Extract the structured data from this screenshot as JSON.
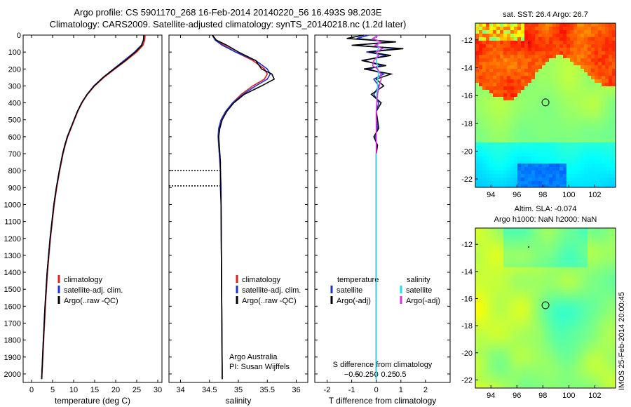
{
  "header": {
    "title_line1": "Argo profile: CS 5901170_268 16-Feb-2014 20140220_56 16.493S 98.203E",
    "title_line2": "Climatology: CARS2009. Satellite-adjusted climatology: synTS_20140218.nc (1.2d later)"
  },
  "colors": {
    "climatology": "#e02020",
    "satellite": "#1f2fd8",
    "argo": "#000000",
    "salinity_satellite": "#22e0e0",
    "salinity_argo": "#e030e0"
  },
  "chart_data": [
    {
      "type": "line",
      "ylim": [
        2050,
        0
      ],
      "xlim": [
        -2,
        31
      ],
      "yticks": [
        0,
        100,
        200,
        300,
        400,
        500,
        600,
        700,
        800,
        900,
        1000,
        1100,
        1200,
        1300,
        1400,
        1500,
        1600,
        1700,
        1800,
        1900,
        2000
      ],
      "xticks": [
        0,
        5,
        10,
        15,
        20,
        25,
        30
      ],
      "xlabel": "temperature (deg C)",
      "legend": [
        "climatology",
        "satellite-adj. clim.",
        "Argo(..raw -QC)"
      ],
      "depth": [
        0,
        30,
        60,
        100,
        150,
        200,
        250,
        300,
        350,
        400,
        450,
        500,
        550,
        600,
        650,
        700,
        800,
        900,
        1000,
        1200,
        1400,
        1600,
        1800,
        2000,
        2030
      ],
      "series": [
        {
          "name": "climatology",
          "values": [
            27.0,
            26.9,
            26.5,
            25.0,
            22.5,
            19.8,
            17.2,
            15.0,
            13.3,
            12.0,
            11.0,
            10.2,
            9.4,
            8.6,
            8.0,
            7.5,
            6.7,
            6.0,
            5.4,
            4.5,
            3.8,
            3.3,
            2.9,
            2.5,
            2.45
          ]
        },
        {
          "name": "satellite-adj. clim.",
          "values": [
            26.7,
            26.6,
            26.1,
            24.5,
            22.0,
            19.5,
            17.0,
            14.8,
            13.2,
            11.9,
            10.9,
            10.1,
            9.3,
            8.5,
            7.9,
            7.4,
            6.6,
            5.9,
            5.3,
            4.4,
            3.7,
            3.2,
            2.8,
            2.45,
            2.4
          ]
        },
        {
          "name": "Argo(..raw -QC)",
          "values": [
            26.7,
            26.6,
            26.2,
            24.7,
            22.3,
            19.6,
            17.0,
            14.9,
            13.2,
            11.9,
            10.9,
            10.1,
            9.3,
            8.5,
            7.9,
            7.4,
            6.6,
            5.9,
            5.3,
            4.4,
            3.7,
            3.2,
            2.8,
            2.45,
            2.4
          ]
        }
      ]
    },
    {
      "type": "line",
      "ylim": [
        2050,
        0
      ],
      "xlim": [
        33.8,
        36.2
      ],
      "xticks": [
        34,
        34.5,
        35,
        35.5,
        36
      ],
      "xlabel": "salinity",
      "legend": [
        "climatology",
        "satellite-adj. clim.",
        "Argo(..raw -QC)"
      ],
      "notes": [
        "Argo Australia",
        "PI: Susan Wijffels"
      ],
      "depth": [
        0,
        30,
        60,
        100,
        150,
        200,
        230,
        260,
        300,
        350,
        400,
        450,
        500,
        550,
        600,
        650,
        700,
        750,
        800,
        900,
        1000,
        1500,
        2000,
        2030
      ],
      "series": [
        {
          "name": "climatology",
          "values": [
            34.55,
            34.6,
            34.75,
            34.95,
            35.25,
            35.45,
            35.5,
            35.45,
            35.25,
            35.05,
            34.9,
            34.78,
            34.7,
            34.67,
            34.66,
            34.66,
            34.67,
            34.68,
            34.69,
            34.7,
            34.7,
            34.71,
            34.72,
            34.72
          ]
        },
        {
          "name": "satellite-adj. clim.",
          "values": [
            34.55,
            34.6,
            34.72,
            34.95,
            35.3,
            35.5,
            35.55,
            35.5,
            35.3,
            35.08,
            34.9,
            34.78,
            34.7,
            34.66,
            34.65,
            34.66,
            34.67,
            34.68,
            34.69,
            34.7,
            34.7,
            34.71,
            34.72,
            34.72
          ]
        },
        {
          "name": "Argo(..raw -QC)",
          "values": [
            34.55,
            34.62,
            34.8,
            35.0,
            35.3,
            35.4,
            35.58,
            35.62,
            35.4,
            35.1,
            34.92,
            34.8,
            34.72,
            34.68,
            34.66,
            34.67,
            34.68,
            34.69,
            34.69,
            34.69,
            34.7,
            34.71,
            34.72,
            34.72
          ]
        }
      ]
    },
    {
      "type": "line",
      "ylim": [
        2050,
        0
      ],
      "xlim": [
        -2.5,
        3
      ],
      "xticks": [
        -2,
        -1,
        0,
        1,
        2
      ],
      "xlabel": "T difference from climatology",
      "top_xticks": [
        -0.5,
        -0.25,
        0,
        0.25,
        0.5
      ],
      "top_xticklabels": [
        "−0.5",
        "−0.25",
        "0",
        "0.25",
        "0.5"
      ],
      "top_xlabel": "S difference from climatology",
      "legend_groups": [
        {
          "title": "temperature",
          "entries": [
            "satellite",
            "Argo(-adj)"
          ]
        },
        {
          "title": "salinity",
          "entries": [
            "satellite",
            "Argo(-adj)"
          ]
        }
      ],
      "depth": [
        0,
        20,
        40,
        60,
        80,
        100,
        120,
        150,
        180,
        200,
        230,
        260,
        300,
        350,
        400,
        450,
        500,
        550,
        600,
        650,
        700,
        800,
        1000,
        1200,
        1500,
        1800,
        2030
      ],
      "series": [
        {
          "name": "temperature satellite",
          "values": [
            -0.3,
            -0.8,
            0.6,
            -0.9,
            0.9,
            -0.4,
            0.4,
            -0.5,
            0.2,
            -0.3,
            0.3,
            -0.1,
            0.1,
            -0.1,
            0.1,
            0.0,
            0.0,
            0.05,
            -0.05,
            0.02,
            0.0,
            0.0,
            0.0,
            0.0,
            0.0,
            0.0,
            0.0
          ]
        },
        {
          "name": "temperature Argo(-adj)",
          "values": [
            -0.5,
            -1.2,
            0.8,
            -1.0,
            1.1,
            -0.3,
            0.6,
            -0.6,
            0.4,
            -0.5,
            0.6,
            0.0,
            0.3,
            -0.2,
            0.2,
            0.0,
            0.05,
            0.1,
            -0.1,
            0.05,
            0.0,
            0.0,
            0.0,
            0.0,
            0.0,
            0.0,
            0.0
          ]
        },
        {
          "name": "salinity satellite",
          "values": [
            0.05,
            -0.1,
            0.15,
            0.05,
            0.1,
            0.0,
            0.05,
            0.0,
            0.05,
            0.05,
            0.1,
            0.05,
            0.05,
            0.02,
            0.02,
            0.0,
            0.0,
            0.0,
            0.0,
            0.0,
            0.0,
            0.0,
            0.0,
            0.0,
            0.0,
            0.0,
            0.0
          ]
        },
        {
          "name": "salinity Argo(-adj)",
          "values": [
            0.1,
            -0.15,
            0.2,
            -0.05,
            0.25,
            0.0,
            0.1,
            -0.1,
            -0.15,
            0.05,
            0.18,
            0.2,
            0.12,
            0.05,
            0.02,
            0.0,
            0.0,
            0.0,
            0.0,
            0.0,
            0.0,
            0.0,
            0.0,
            0.0,
            0.0,
            0.0,
            0.0
          ]
        }
      ]
    },
    {
      "type": "heatmap",
      "title": "sat. SST: 26.4  Argo: 26.7",
      "xticks": [
        94,
        96,
        98,
        100,
        102
      ],
      "yticks": [
        -12,
        -14,
        -16,
        -18,
        -20,
        -22
      ],
      "xlim": [
        92.8,
        103.6
      ],
      "ylim": [
        -22.6,
        -10.8
      ],
      "argo_location": [
        98.203,
        -16.493
      ]
    },
    {
      "type": "heatmap",
      "title": "Altim. SLA: -0.074",
      "subtitle": "Argo h1000: NaN h2000: NaN",
      "xticks": [
        94,
        96,
        98,
        100,
        102
      ],
      "yticks": [
        -12,
        -14,
        -16,
        -18,
        -20,
        -22
      ],
      "xlim": [
        92.8,
        103.6
      ],
      "ylim": [
        -22.6,
        -10.8
      ],
      "argo_location": [
        98.203,
        -16.493
      ]
    }
  ],
  "stamp": "IMOS 25-Feb-2014 20:00:45"
}
